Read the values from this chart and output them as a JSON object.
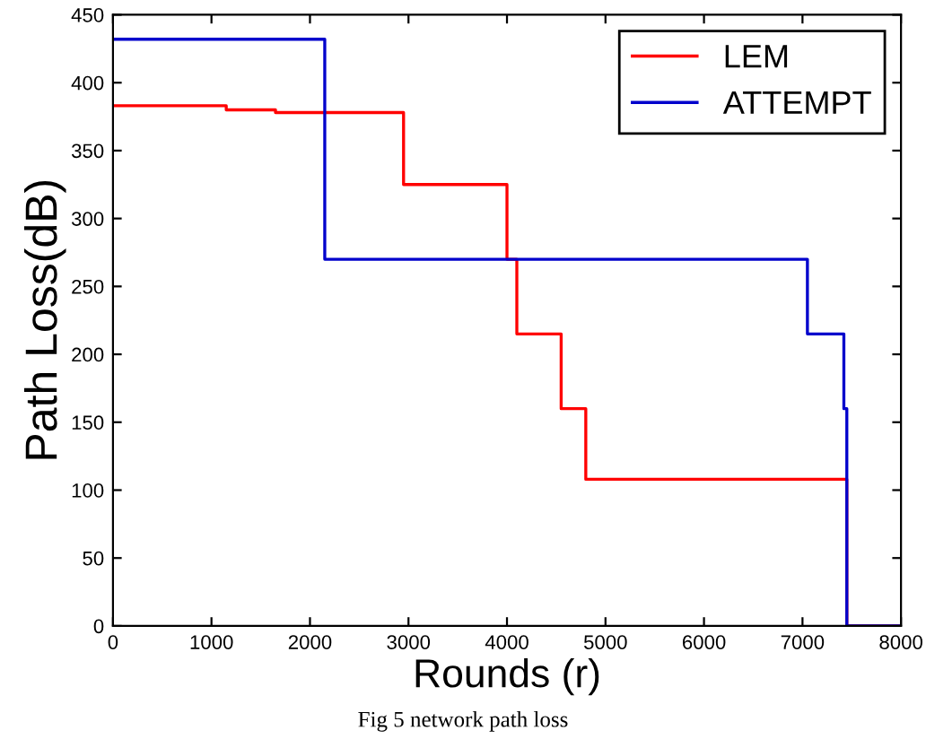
{
  "chart_data": {
    "type": "step",
    "xlabel": "Rounds (r)",
    "ylabel": "Path Loss(dB)",
    "series": [
      {
        "name": "LEM",
        "color": "#ff0000",
        "x": [
          0,
          1150,
          1650,
          2950,
          4000,
          4100,
          4550,
          4800,
          7450,
          8000
        ],
        "values": [
          383,
          380,
          378,
          325,
          270,
          215,
          160,
          108,
          0,
          0
        ]
      },
      {
        "name": "ATTEMPT",
        "color": "#0000cc",
        "x": [
          0,
          2150,
          7050,
          7420,
          7450,
          8000
        ],
        "values": [
          432,
          270,
          215,
          160,
          0,
          0
        ]
      }
    ],
    "xlim": [
      0,
      8000
    ],
    "xticks": [
      0,
      1000,
      2000,
      3000,
      4000,
      5000,
      6000,
      7000,
      8000
    ],
    "ylim": [
      0,
      450
    ],
    "yticks": [
      0,
      50,
      100,
      150,
      200,
      250,
      300,
      350,
      400,
      450
    ],
    "grid": false,
    "legend": "top right",
    "annotations": [
      "Fig 5 network path loss"
    ]
  }
}
